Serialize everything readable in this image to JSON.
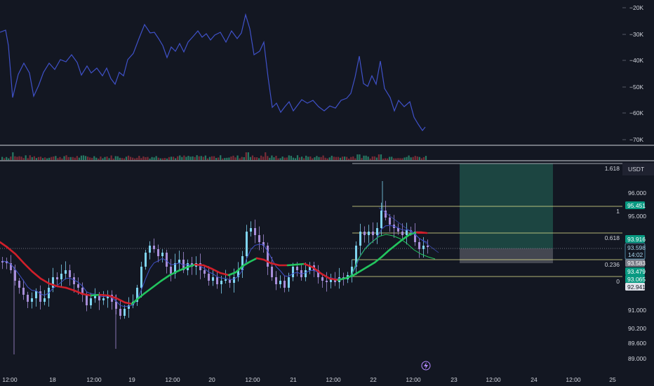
{
  "oscillator": {
    "axis_labels": [
      "−20K",
      "−30K",
      "−40K",
      "−50K",
      "−60K",
      "−70K"
    ],
    "line_color": "#3f51c8"
  },
  "price_axis": {
    "currency": "USDT",
    "tick_labels": [
      "96.000",
      "95.000",
      "91.000",
      "90.200",
      "89.600",
      "89.000"
    ],
    "current_price": "93.598",
    "countdown": "14:02",
    "tags": [
      {
        "value": "95.451",
        "style": "green"
      },
      {
        "value": "93.916",
        "style": "green"
      },
      {
        "value": "93.583",
        "style": "grey"
      },
      {
        "value": "93.479",
        "style": "green"
      },
      {
        "value": "93.065",
        "style": "green"
      },
      {
        "value": "92.941",
        "style": "light"
      }
    ]
  },
  "fibonacci": {
    "levels": [
      "1.618",
      "1",
      "0.618",
      "0.236",
      "0"
    ]
  },
  "time_axis": {
    "labels": [
      "12:00",
      "18",
      "12:00",
      "19",
      "12:00",
      "20",
      "12:00",
      "21",
      "12:00",
      "22",
      "12:00",
      "23",
      "12:00",
      "24",
      "12:00",
      "25"
    ]
  },
  "colors": {
    "background": "#131722",
    "up_candle": "#7fd4f0",
    "down_candle": "#a88ed9",
    "ma_up": "#22c55e",
    "ma_down": "#d01f2a",
    "profit_zone": "#1e4a45",
    "loss_zone": "#4a4c57",
    "green_tag": "#089981"
  },
  "icons": {
    "replay": "lightning-icon"
  }
}
